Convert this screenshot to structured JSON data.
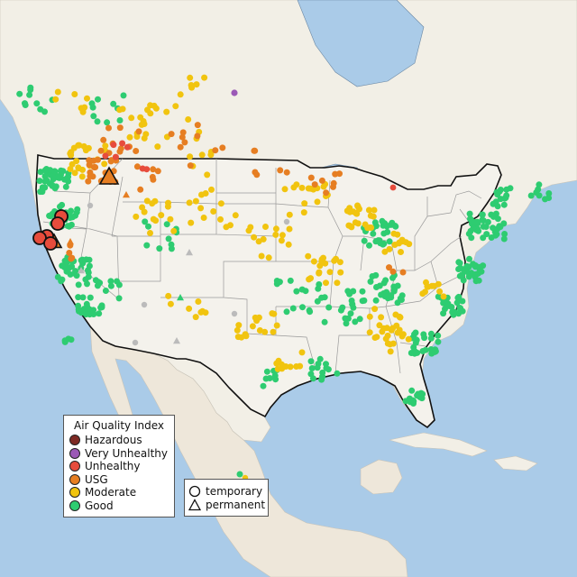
{
  "colors": {
    "water": "#aacbe8",
    "land": "#f2efe6",
    "us_land": "#f4f2ec",
    "mexico_land": "#eee7da",
    "border": "#111111",
    "state_line": "#9a9a9a"
  },
  "legend": {
    "title": "Air Quality Index",
    "items": [
      {
        "label": "Hazardous",
        "color": "#7e2a24"
      },
      {
        "label": "Very Unhealthy",
        "color": "#9b59b6"
      },
      {
        "label": "Unhealthy",
        "color": "#e74c3c"
      },
      {
        "label": "USG",
        "color": "#e67e22"
      },
      {
        "label": "Moderate",
        "color": "#f1c40f"
      },
      {
        "label": "Good",
        "color": "#2ecc71"
      }
    ]
  },
  "shape_legend": {
    "items": [
      {
        "label": "temporary",
        "icon": "circle-icon"
      },
      {
        "label": "permanent",
        "icon": "triangle-icon"
      }
    ]
  }
}
